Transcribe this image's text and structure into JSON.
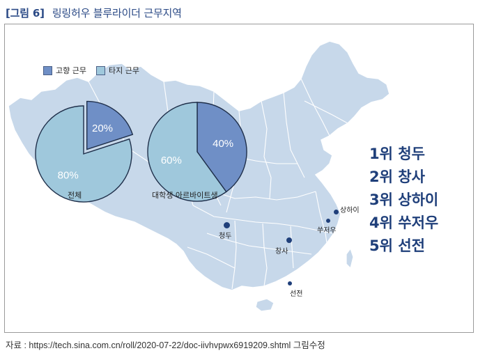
{
  "figure": {
    "label": "[그림 6]",
    "title": "링링허우 블루라이더 근무지역"
  },
  "legend": [
    {
      "label": "고향 근무",
      "color": "#6f8fc6"
    },
    {
      "label": "타지 근무",
      "color": "#9fc8dc"
    }
  ],
  "chart_data": [
    {
      "type": "pie",
      "title": "전체",
      "slices": [
        {
          "name": "고향 근무",
          "value": 20,
          "label": "20%",
          "color": "#6f8fc6",
          "exploded": true
        },
        {
          "name": "타지 근무",
          "value": 80,
          "label": "80%",
          "color": "#9fc8dc",
          "exploded": false
        }
      ]
    },
    {
      "type": "pie",
      "title": "대학생 아르바이트생",
      "slices": [
        {
          "name": "고향 근무",
          "value": 40,
          "label": "40%",
          "color": "#6f8fc6",
          "exploded": false
        },
        {
          "name": "타지 근무",
          "value": 60,
          "label": "60%",
          "color": "#9fc8dc",
          "exploded": false
        }
      ]
    }
  ],
  "map": {
    "fill": "#c7d8ea",
    "border": "#ffffff",
    "marker_color": "#1f3f7a",
    "cities": [
      {
        "name": "청두",
        "rank": 1
      },
      {
        "name": "창사",
        "rank": 2
      },
      {
        "name": "상하이",
        "rank": 3
      },
      {
        "name": "쑤저우",
        "rank": 4
      },
      {
        "name": "선전",
        "rank": 5
      }
    ]
  },
  "ranking": [
    "1위 청두",
    "2위 창사",
    "3위 상하이",
    "4위 쑤저우",
    "5위 선전"
  ],
  "source": "자료 : https://tech.sina.com.cn/roll/2020-07-22/doc-iivhvpwx6919209.shtml 그림수정"
}
